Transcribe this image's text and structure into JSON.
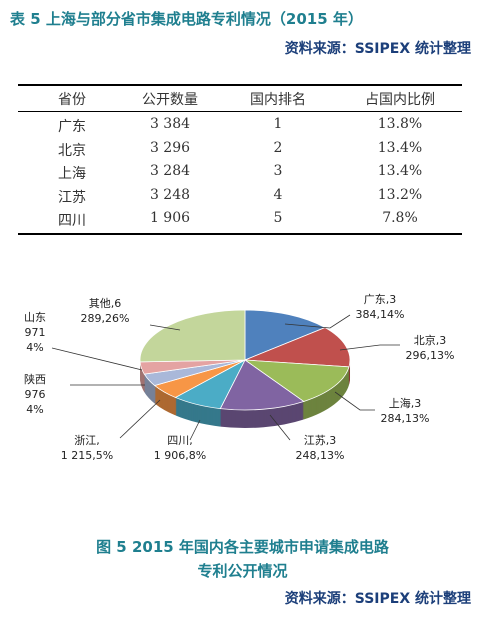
{
  "header": {
    "title": "表 5 上海与部分省市集成电路专利情况（2015 年）",
    "source": "资料来源：SSIPEX 统计整理"
  },
  "table": {
    "columns": [
      "省份",
      "公开数量",
      "国内排名",
      "占国内比例"
    ],
    "rows": [
      [
        "广东",
        "3 384",
        "1",
        "13.8%"
      ],
      [
        "北京",
        "3 296",
        "2",
        "13.4%"
      ],
      [
        "上海",
        "3 284",
        "3",
        "13.4%"
      ],
      [
        "江苏",
        "3 248",
        "4",
        "13.2%"
      ],
      [
        "四川",
        "1 906",
        "5",
        "7.8%"
      ]
    ]
  },
  "chart_data": {
    "type": "pie",
    "categories": [
      "广东",
      "北京",
      "上海",
      "江苏",
      "四川",
      "浙江",
      "陕西",
      "山东",
      "其他"
    ],
    "values": [
      3384,
      3296,
      3284,
      3248,
      1906,
      1215,
      976,
      971,
      6289
    ],
    "value_labels": [
      "广东,3\n384,14%",
      "北京,3\n296,13%",
      "上海,3\n284,13%",
      "江苏,3\n248,13%",
      "四川,\n1 906,8%",
      "浙江,\n1 215,5%",
      "陕西\n976\n4%",
      "山东\n971\n4%",
      "其他,6\n289,26%"
    ],
    "colors": [
      "#4f81bd",
      "#c0504d",
      "#9bbb59",
      "#8064a2",
      "#4bacc6",
      "#f79646",
      "#a9b8d9",
      "#e4a3a2",
      "#c3d69b"
    ]
  },
  "figure": {
    "caption": "图 5 2015 年国内各主要城市申请集成电路",
    "caption2": "专利公开情况",
    "source": "资料来源：SSIPEX 统计整理"
  }
}
